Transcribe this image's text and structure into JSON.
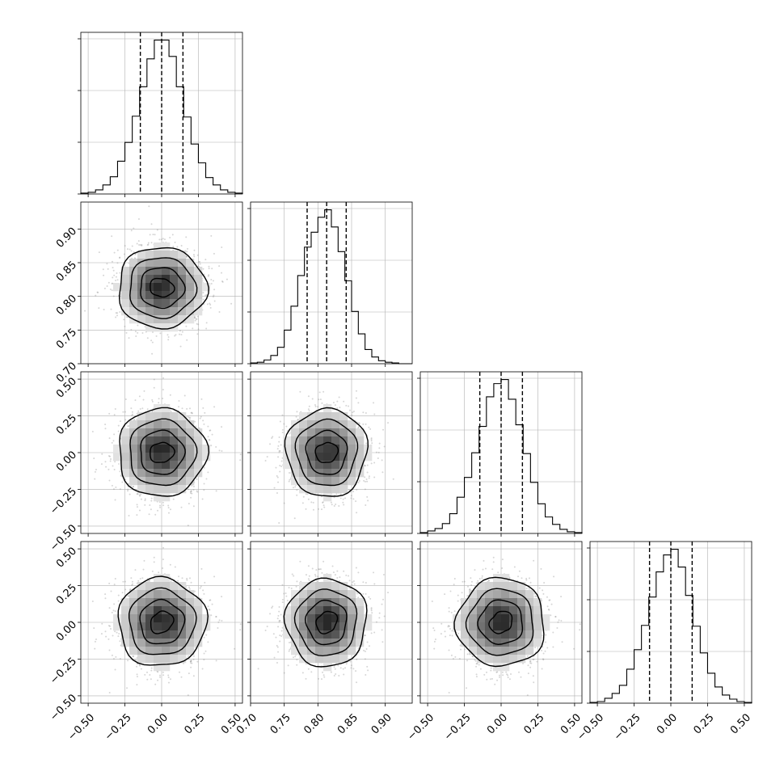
{
  "chart_data": {
    "type": "corner",
    "n_params": 4,
    "params": [
      {
        "range": [
          -0.55,
          0.55
        ],
        "ticks": [
          -0.5,
          -0.25,
          0.0,
          0.25,
          0.5
        ],
        "tick_labels": [
          "−0.50",
          "−0.25",
          "0.00",
          "0.25",
          "0.50"
        ],
        "mean": 0.0,
        "sigma": 0.15,
        "quantiles": [
          -0.145,
          0.0,
          0.145
        ]
      },
      {
        "range": [
          0.7,
          0.94
        ],
        "ticks": [
          0.7,
          0.75,
          0.8,
          0.85,
          0.9
        ],
        "tick_labels": [
          "0.70",
          "0.75",
          "0.80",
          "0.85",
          "0.90"
        ],
        "mean": 0.813,
        "sigma": 0.03,
        "quantiles": [
          0.784,
          0.813,
          0.842
        ]
      },
      {
        "range": [
          -0.55,
          0.55
        ],
        "ticks": [
          -0.5,
          -0.25,
          0.0,
          0.25,
          0.5
        ],
        "tick_labels": [
          "−0.50",
          "−0.25",
          "0.00",
          "0.25",
          "0.50"
        ],
        "mean": 0.0,
        "sigma": 0.15,
        "quantiles": [
          -0.145,
          0.0,
          0.145
        ]
      },
      {
        "range": [
          -0.55,
          0.55
        ],
        "ticks": [
          -0.5,
          -0.25,
          0.0,
          0.25,
          0.5
        ],
        "tick_labels": [
          "−0.50",
          "−0.25",
          "0.00",
          "0.25",
          "0.50"
        ],
        "mean": 0.0,
        "sigma": 0.15,
        "quantiles": [
          -0.145,
          0.0,
          0.145
        ]
      }
    ],
    "histograms": [
      {
        "param": 0,
        "bin_edges": [
          -0.55,
          -0.5,
          -0.45,
          -0.4,
          -0.35,
          -0.3,
          -0.25,
          -0.2,
          -0.15,
          -0.1,
          -0.05,
          0.0,
          0.05,
          0.1,
          0.15,
          0.2,
          0.25,
          0.3,
          0.35,
          0.4,
          0.45,
          0.5,
          0.55
        ],
        "counts": [
          1,
          2,
          5,
          11,
          21,
          40,
          63,
          95,
          131,
          165,
          188,
          188,
          168,
          131,
          94,
          61,
          38,
          20,
          11,
          5,
          2,
          1
        ]
      },
      {
        "param": 1,
        "bin_edges": [
          0.7,
          0.71,
          0.72,
          0.73,
          0.74,
          0.75,
          0.76,
          0.77,
          0.78,
          0.79,
          0.8,
          0.81,
          0.82,
          0.83,
          0.84,
          0.85,
          0.86,
          0.87,
          0.88,
          0.89,
          0.9,
          0.91,
          0.92,
          0.93,
          0.94
        ],
        "counts": [
          1,
          2,
          5,
          11,
          22,
          45,
          77,
          118,
          156,
          176,
          196,
          206,
          183,
          150,
          111,
          70,
          40,
          19,
          9,
          4,
          2,
          1,
          0,
          0
        ]
      },
      {
        "param": 2,
        "bin_edges": [
          -0.55,
          -0.5,
          -0.45,
          -0.4,
          -0.35,
          -0.3,
          -0.25,
          -0.2,
          -0.15,
          -0.1,
          -0.05,
          0.0,
          0.05,
          0.1,
          0.15,
          0.2,
          0.25,
          0.3,
          0.35,
          0.4,
          0.45,
          0.5,
          0.55
        ],
        "counts": [
          1,
          3,
          6,
          12,
          24,
          44,
          68,
          98,
          130,
          166,
          182,
          187,
          163,
          132,
          97,
          62,
          36,
          20,
          11,
          5,
          2,
          1
        ]
      },
      {
        "param": 3,
        "bin_edges": [
          -0.55,
          -0.5,
          -0.45,
          -0.4,
          -0.35,
          -0.3,
          -0.25,
          -0.2,
          -0.15,
          -0.1,
          -0.05,
          0.0,
          0.05,
          0.1,
          0.15,
          0.2,
          0.25,
          0.3,
          0.35,
          0.4,
          0.45,
          0.5,
          0.55
        ],
        "counts": [
          1,
          2,
          6,
          12,
          22,
          42,
          66,
          96,
          131,
          162,
          183,
          190,
          168,
          133,
          95,
          62,
          37,
          20,
          10,
          5,
          2,
          1
        ]
      }
    ],
    "joint_pairs": [
      [
        1,
        0
      ],
      [
        2,
        0
      ],
      [
        2,
        1
      ],
      [
        3,
        0
      ],
      [
        3,
        1
      ],
      [
        3,
        2
      ]
    ],
    "contour_levels_sigma": [
      0.5,
      1.0,
      1.5,
      2.0
    ],
    "hist_ticks_count": 4,
    "scatter_points": 1400,
    "grid": true
  }
}
